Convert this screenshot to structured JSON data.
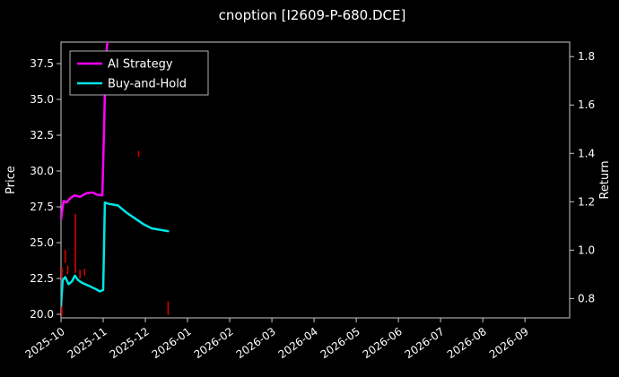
{
  "window": {
    "title": "cnoption [I2609-P-680.DCE]"
  },
  "chart": {
    "title": "cnoption [I2609-P-680.DCE]",
    "left_axis_label": "Price",
    "right_axis_label": "Return",
    "legend": [
      {
        "label": "AI Strategy",
        "color": "#ff00ff"
      },
      {
        "label": "Buy-and-Hold",
        "color": "#00e5e5"
      }
    ],
    "colors": {
      "background": "#000000",
      "text": "#ffffff",
      "frame": "#c8c8c8",
      "candle": "#d40000"
    }
  },
  "chart_data": {
    "type": "line",
    "title": "cnoption [I2609-P-680.DCE]",
    "xlabel": "",
    "ylabel_left": "Price",
    "ylabel_right": "Return",
    "x_tick_labels": [
      "2025-10",
      "2025-11",
      "2025-12",
      "2026-01",
      "2026-02",
      "2026-03",
      "2026-04",
      "2026-05",
      "2026-06",
      "2026-07",
      "2026-08",
      "2026-09"
    ],
    "left_ticks": [
      20.0,
      22.5,
      25.0,
      27.5,
      30.0,
      32.5,
      35.0,
      37.5
    ],
    "right_ticks": [
      0.8,
      1.0,
      1.2,
      1.4,
      1.6,
      1.8
    ],
    "left_range": [
      19.75,
      39.0
    ],
    "right_range": [
      0.72,
      1.86
    ],
    "x_range": [
      0,
      12.06
    ],
    "grid": false,
    "legend_position": "upper left",
    "series": [
      {
        "name": "Buy-and-Hold",
        "color": "#00e5e5",
        "axis": "price",
        "points": [
          [
            0.0,
            20.6
          ],
          [
            0.04,
            22.4
          ],
          [
            0.1,
            22.6
          ],
          [
            0.18,
            22.1
          ],
          [
            0.26,
            22.3
          ],
          [
            0.33,
            22.7
          ],
          [
            0.4,
            22.4
          ],
          [
            0.5,
            22.2
          ],
          [
            0.65,
            22.0
          ],
          [
            0.8,
            21.8
          ],
          [
            0.92,
            21.6
          ],
          [
            1.0,
            21.7
          ],
          [
            1.04,
            27.8
          ],
          [
            1.15,
            27.7
          ],
          [
            1.35,
            27.6
          ],
          [
            1.55,
            27.1
          ],
          [
            1.75,
            26.7
          ],
          [
            1.95,
            26.3
          ],
          [
            2.15,
            26.0
          ],
          [
            2.35,
            25.9
          ],
          [
            2.54,
            25.8
          ]
        ]
      },
      {
        "name": "AI Strategy",
        "color": "#ff00ff",
        "axis": "price",
        "points": [
          [
            0.0,
            26.6
          ],
          [
            0.06,
            27.9
          ],
          [
            0.13,
            27.8
          ],
          [
            0.22,
            28.1
          ],
          [
            0.32,
            28.3
          ],
          [
            0.45,
            28.2
          ],
          [
            0.6,
            28.45
          ],
          [
            0.75,
            28.5
          ],
          [
            0.85,
            28.35
          ],
          [
            0.98,
            28.3
          ],
          [
            1.02,
            33.0
          ],
          [
            1.06,
            37.8
          ],
          [
            1.1,
            39.0
          ]
        ]
      }
    ],
    "candles": [
      {
        "x": 0.02,
        "low": 19.9,
        "high": 23.3
      },
      {
        "x": 0.1,
        "low": 23.6,
        "high": 24.5
      },
      {
        "x": 0.16,
        "low": 22.8,
        "high": 23.4
      },
      {
        "x": 0.34,
        "low": 22.9,
        "high": 27.0
      },
      {
        "x": 0.45,
        "low": 22.5,
        "high": 23.1
      },
      {
        "x": 0.56,
        "low": 22.7,
        "high": 23.2
      },
      {
        "x": 1.84,
        "low": 31.0,
        "high": 31.4
      },
      {
        "x": 2.54,
        "low": 19.95,
        "high": 20.9
      }
    ]
  }
}
